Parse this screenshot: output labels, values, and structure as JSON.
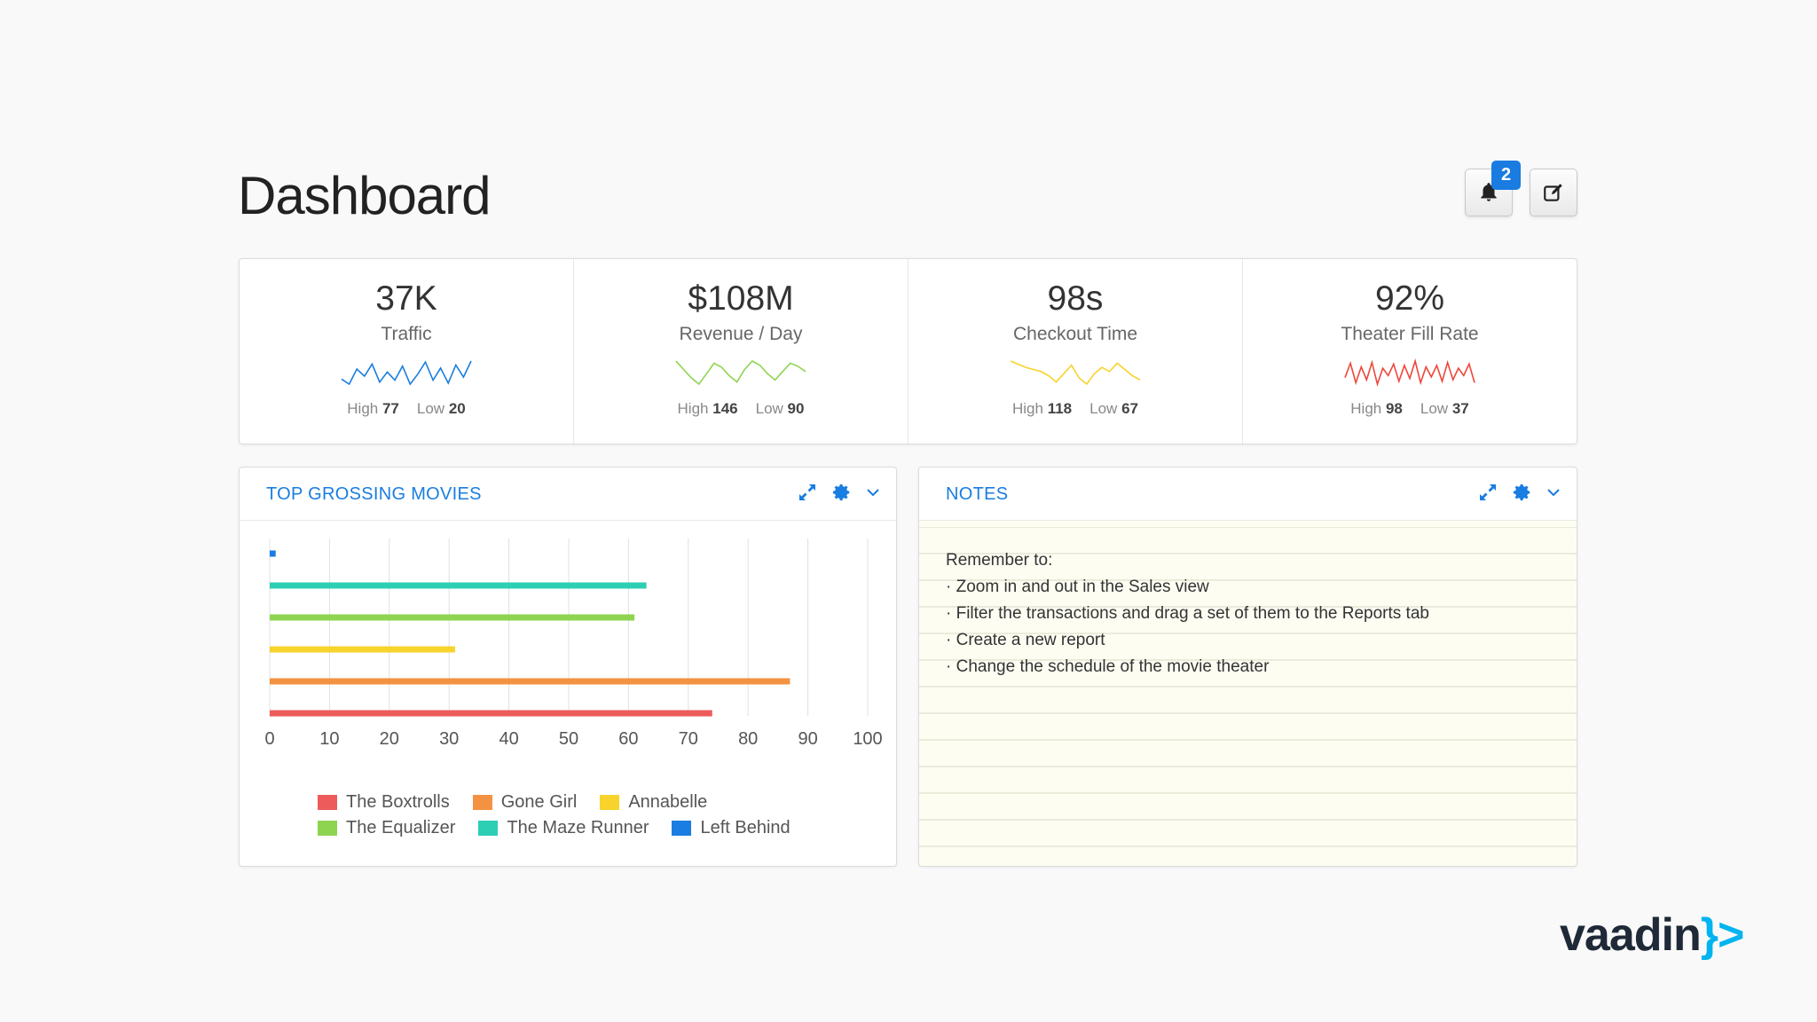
{
  "page": {
    "title": "Dashboard"
  },
  "header": {
    "notification_count": "2"
  },
  "stats": [
    {
      "value": "37K",
      "label": "Traffic",
      "high_label": "High",
      "high": "77",
      "low_label": "Low",
      "low": "20",
      "color": "#197de1",
      "spark": [
        45,
        40,
        55,
        48,
        60,
        42,
        52,
        44,
        58,
        40,
        50,
        62,
        44,
        56,
        41,
        59,
        47,
        63
      ]
    },
    {
      "value": "$108M",
      "label": "Revenue / Day",
      "high_label": "High",
      "high": "146",
      "low_label": "Low",
      "low": "90",
      "color": "#8ed450",
      "spark": [
        60,
        52,
        44,
        38,
        48,
        58,
        54,
        46,
        40,
        52,
        60,
        56,
        48,
        42,
        50,
        58,
        55,
        50
      ]
    },
    {
      "value": "98s",
      "label": "Checkout Time",
      "high_label": "High",
      "high": "118",
      "low_label": "Low",
      "low": "67",
      "color": "#f7d32c",
      "spark": [
        58,
        55,
        52,
        50,
        48,
        44,
        38,
        46,
        54,
        42,
        36,
        46,
        52,
        48,
        56,
        50,
        44,
        40
      ]
    },
    {
      "value": "92%",
      "label": "Theater Fill Rate",
      "high_label": "High",
      "high": "98",
      "low_label": "Low",
      "low": "37",
      "color": "#ed473b",
      "spark": [
        45,
        65,
        38,
        60,
        42,
        66,
        36,
        58,
        48,
        64,
        40,
        62,
        44,
        68,
        38,
        60,
        46,
        62,
        40,
        66,
        42,
        58,
        48,
        64,
        38
      ]
    }
  ],
  "chart_panel": {
    "title": "TOP GROSSING MOVIES"
  },
  "chart_data": {
    "type": "bar",
    "orientation": "horizontal",
    "xlim": [
      0,
      100
    ],
    "xticks": [
      "0",
      "10",
      "20",
      "30",
      "40",
      "50",
      "60",
      "70",
      "80",
      "90",
      "100"
    ],
    "grid": true,
    "series": [
      {
        "name": "Left Behind",
        "value": 1,
        "color": "#197de1"
      },
      {
        "name": "The Maze Runner",
        "value": 63,
        "color": "#2dcfb4"
      },
      {
        "name": "The Equalizer",
        "value": 61,
        "color": "#8ed450"
      },
      {
        "name": "Annabelle",
        "value": 31,
        "color": "#f7d32c"
      },
      {
        "name": "Gone Girl",
        "value": 87,
        "color": "#f39241"
      },
      {
        "name": "The Boxtrolls",
        "value": 74,
        "color": "#ed5b5b"
      }
    ],
    "legend": [
      [
        {
          "name": "The Boxtrolls",
          "color": "#ed5b5b"
        },
        {
          "name": "Gone Girl",
          "color": "#f39241"
        },
        {
          "name": "Annabelle",
          "color": "#f7d32c"
        }
      ],
      [
        {
          "name": "The Equalizer",
          "color": "#8ed450"
        },
        {
          "name": "The Maze Runner",
          "color": "#2dcfb4"
        },
        {
          "name": "Left Behind",
          "color": "#197de1"
        }
      ]
    ],
    "legend_placement": "bottom"
  },
  "notes_panel": {
    "title": "NOTES",
    "lines": [
      "Remember to:",
      "· Zoom in and out in the Sales view",
      "· Filter the transactions and drag a set of them to the Reports tab",
      "· Create a new report",
      "· Change the schedule of the movie theater"
    ]
  },
  "icons": {
    "notification": "bell-icon",
    "edit": "edit-icon",
    "maximize": "maximize-icon",
    "settings": "gear-icon",
    "dropdown": "chevron-down-icon"
  },
  "brand": {
    "logo_text": "vaadin",
    "logo_bracket": "}>"
  }
}
